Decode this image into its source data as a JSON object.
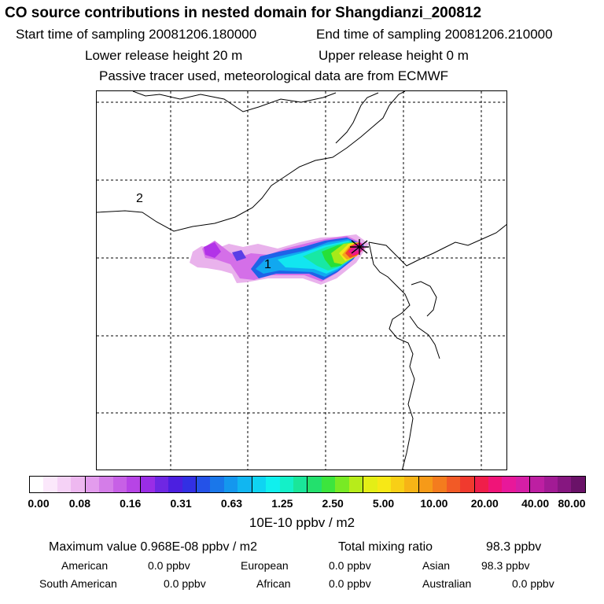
{
  "header": {
    "title": "CO  source contributions in nested domain for Shangdianzi_200812",
    "start_label": "Start time of sampling 20081206.180000",
    "end_label": "End time of sampling 20081206.210000",
    "lower_label": "Lower release height   20 m",
    "upper_label": "Upper release height    0 m",
    "tracer_note": "Passive tracer used, meteorological data are from ECMWF"
  },
  "map": {
    "label_2": "2",
    "label_1": "1",
    "plume_colors": [
      "#e9b2ec",
      "#d46fe8",
      "#b233e8",
      "#5a3fe6",
      "#1e63e8",
      "#11a8f0",
      "#12e6f0",
      "#18e8a4",
      "#26e039",
      "#a7ea19",
      "#f0e719",
      "#f6a21b",
      "#f2442a",
      "#ef168c",
      "#c82fa5"
    ]
  },
  "colorbar": {
    "colors": [
      "#ffffff",
      "#fbe8fb",
      "#f5d2f6",
      "#eeb8f0",
      "#e39ced",
      "#d47de8",
      "#c760e6",
      "#b744e6",
      "#9a2de6",
      "#6f27e3",
      "#4c1fe0",
      "#3230e4",
      "#2452e8",
      "#1a77ea",
      "#1497ee",
      "#11b6f1",
      "#0fd4f2",
      "#10f0ee",
      "#14f0c8",
      "#1ae69a",
      "#23e06d",
      "#3ce53d",
      "#78ea24",
      "#b7ec1a",
      "#e4ee16",
      "#f7e816",
      "#f8cf16",
      "#f7b416",
      "#f69a18",
      "#f47c1e",
      "#f25a26",
      "#f03a2e",
      "#f01e4a",
      "#f01478",
      "#e8189a",
      "#d61ea6",
      "#bd1fa2",
      "#a21b95",
      "#861780",
      "#6a1268"
    ],
    "ticks": [
      "0.00",
      "0.08",
      "0.16",
      "0.31",
      "0.63",
      "1.25",
      "2.50",
      "5.00",
      "10.00",
      "20.00",
      "40.00",
      "80.00"
    ],
    "unit": "10E-10 ppbv / m2"
  },
  "stats": {
    "max_label": "Maximum value  0.968E-08 ppbv / m2",
    "total_label": "Total mixing ratio",
    "total_value": "98.3 ppbv",
    "regions": [
      {
        "name": "American",
        "value": "0.0 ppbv"
      },
      {
        "name": "European",
        "value": "0.0 ppbv"
      },
      {
        "name": "Asian",
        "value": "98.3 ppbv"
      },
      {
        "name": "South American",
        "value": "0.0 ppbv"
      },
      {
        "name": "African",
        "value": "0.0 ppbv"
      },
      {
        "name": "Australian",
        "value": "0.0 ppbv"
      }
    ]
  }
}
